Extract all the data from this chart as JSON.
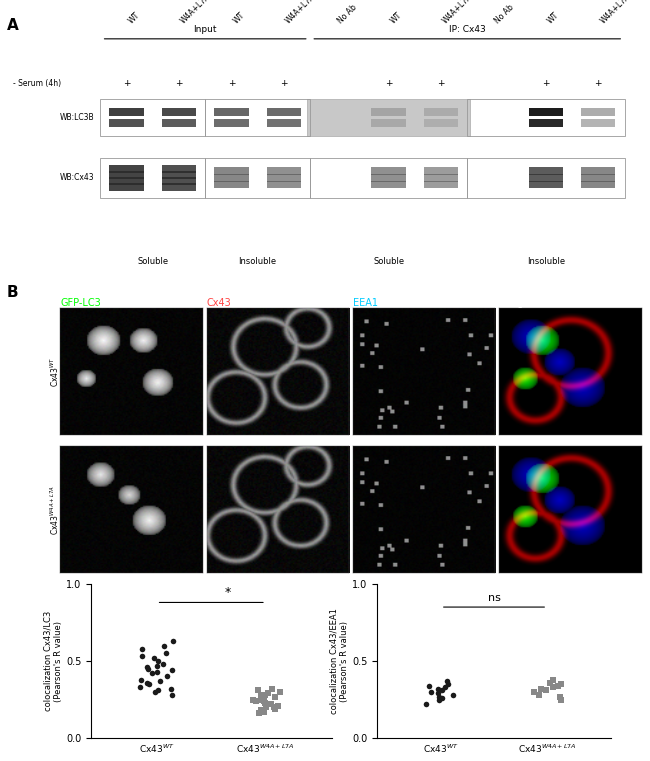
{
  "panel_A_label": "A",
  "panel_B_label": "B",
  "wb_title_input": "Input",
  "wb_title_ip": "IP: Cx43",
  "wb_col_labels": [
    "WT",
    "W4A+L7A",
    "WT",
    "W4A+L7A",
    "No Ab",
    "WT",
    "W4A+L7A",
    "No Ab",
    "WT",
    "W4A+L7A"
  ],
  "wb_serum_label": "- Serum (4h)",
  "wb_serum_vals": [
    "+",
    "+",
    "+",
    "+",
    "",
    "+",
    "+",
    "",
    "+",
    "+"
  ],
  "wb_row1_label": "WB:LC3B",
  "wb_row2_label": "WB:Cx43",
  "wb_sublabel1": "Soluble",
  "wb_sublabel2": "Insoluble",
  "wb_sublabel3": "Soluble",
  "wb_sublabel4": "Insoluble",
  "microscopy_col_titles": [
    "GFP-LC3",
    "Cx43",
    "EEA1",
    "Merge"
  ],
  "microscopy_col_colors": [
    "#00ff00",
    "#ff4444",
    "#00ccff",
    "#ffffff"
  ],
  "plot1_ylabel": "colocalization Cx43/LC3\n(Pearson's R value)",
  "plot2_ylabel": "colocalization Cx43/EEA1\n(Pearson's R value)",
  "plot1_ylim": [
    0.0,
    1.0
  ],
  "plot2_ylim": [
    0.0,
    1.0
  ],
  "plot1_yticks": [
    0.0,
    0.5,
    1.0
  ],
  "plot2_yticks": [
    0.0,
    0.5,
    1.0
  ],
  "significance1": "*",
  "significance2": "ns",
  "wt_lc3_dots": [
    0.58,
    0.55,
    0.52,
    0.6,
    0.63,
    0.5,
    0.47,
    0.53,
    0.45,
    0.43,
    0.48,
    0.4,
    0.42,
    0.38,
    0.35,
    0.32,
    0.36,
    0.3,
    0.28,
    0.33,
    0.37,
    0.44,
    0.46,
    0.31
  ],
  "mut_lc3_dots": [
    0.3,
    0.25,
    0.22,
    0.27,
    0.32,
    0.28,
    0.24,
    0.2,
    0.18,
    0.23,
    0.26,
    0.21,
    0.19,
    0.16,
    0.29,
    0.31,
    0.17,
    0.25,
    0.22,
    0.28,
    0.24,
    0.2
  ],
  "wt_eea1_dots": [
    0.32,
    0.28,
    0.3,
    0.35,
    0.27,
    0.25,
    0.33,
    0.31,
    0.29,
    0.22,
    0.34,
    0.37,
    0.26
  ],
  "mut_eea1_dots": [
    0.38,
    0.35,
    0.33,
    0.3,
    0.32,
    0.36,
    0.28,
    0.25,
    0.27,
    0.34,
    0.31
  ],
  "dot_color_wt": "#1a1a1a",
  "dot_color_mut": "#888888",
  "bg_color": "#ffffff"
}
